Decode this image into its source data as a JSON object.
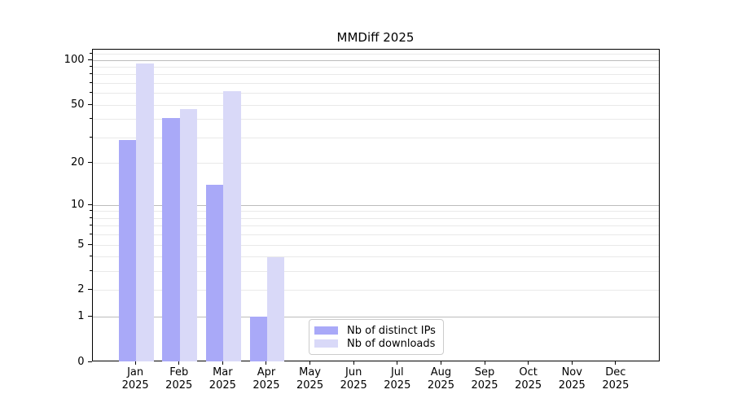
{
  "title": "MMDiff 2025",
  "chart_data": {
    "type": "bar",
    "title": "MMDiff 2025",
    "categories": [
      "Jan",
      "Feb",
      "Mar",
      "Apr",
      "May",
      "Jun",
      "Jul",
      "Aug",
      "Sep",
      "Oct",
      "Nov",
      "Dec"
    ],
    "year_label": "2025",
    "series": [
      {
        "name": "Nb of distinct IPs",
        "color": "#a9a9f8",
        "values": [
          29,
          41,
          14,
          1,
          0,
          0,
          0,
          0,
          0,
          0,
          0,
          0
        ]
      },
      {
        "name": "Nb of downloads",
        "color": "#d9d9f8",
        "values": [
          95,
          47,
          62,
          4,
          0,
          0,
          0,
          0,
          0,
          0,
          0,
          0
        ]
      }
    ],
    "xlabel": "",
    "ylabel": "",
    "yscale": "log1p",
    "ylim": [
      0,
      118
    ],
    "yticks": [
      0,
      1,
      2,
      5,
      10,
      20,
      50,
      100
    ],
    "ytick_labels": [
      "0",
      "1",
      "2",
      "5",
      "10",
      "20",
      "50",
      "100"
    ],
    "major_gridlines": [
      1,
      10,
      100
    ],
    "minor_gridlines": [
      2,
      3,
      4,
      5,
      6,
      7,
      8,
      9,
      20,
      30,
      40,
      50,
      60,
      70,
      80,
      90,
      110
    ],
    "grid": true,
    "legend_position": "lower center-left inside plot",
    "colors": {
      "major_grid": "#bcbcbc",
      "minor_grid": "#e9e9e9",
      "axis": "#000000",
      "background": "#ffffff",
      "legend_border": "#cccccc"
    }
  }
}
